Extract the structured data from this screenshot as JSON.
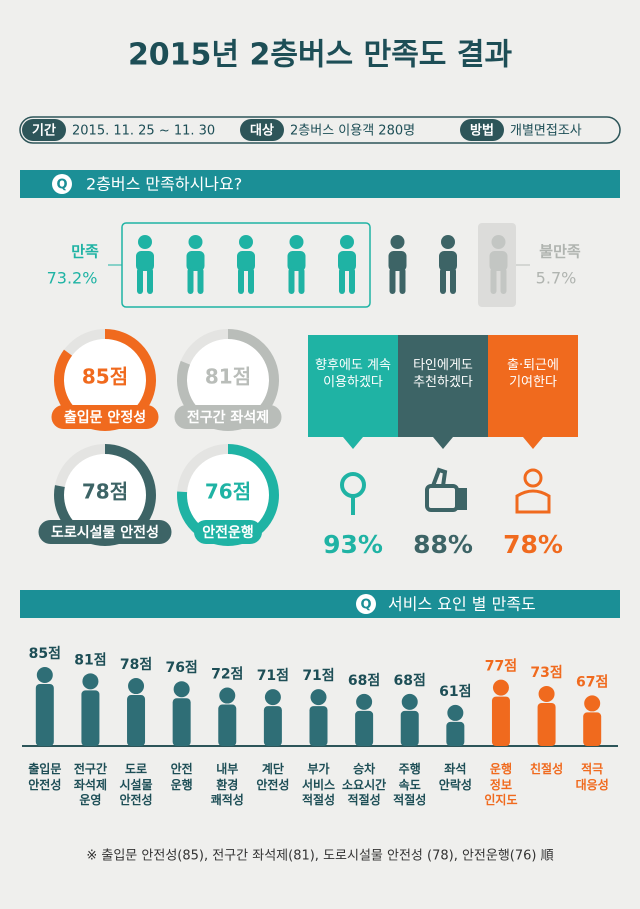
{
  "title": "2015년 2층버스 만족도 결과",
  "info": [
    {
      "label": "기간",
      "text": "2015. 11. 25 ~ 11. 30"
    },
    {
      "label": "대상",
      "text": "2층버스 이용객 280명"
    },
    {
      "label": "방법",
      "text": "개별면접조사"
    }
  ],
  "q1": {
    "mark": "Q",
    "title": "2층버스 만족하시나요?",
    "satisfied_label": "만족",
    "satisfied": 73.2,
    "satisfied_text": "73.2%",
    "dissatisfied_label": "불만족",
    "dissatisfied": 5.7,
    "dissatisfied_text": "5.7%"
  },
  "rings": [
    {
      "value": 85,
      "label": "85점",
      "name": "출입문 안정성",
      "color": "#f06a1e"
    },
    {
      "value": 81,
      "label": "81점",
      "name": "전구간 좌석제",
      "color": "#b9bdb9"
    },
    {
      "value": 78,
      "label": "78점",
      "name": "도로시설물 안전성",
      "color": "#3d6466"
    },
    {
      "value": 76,
      "label": "76점",
      "name": "안전운행",
      "color": "#1fb3a4"
    }
  ],
  "intent": [
    {
      "text": "향후에도 계속 이용하겠다",
      "value": 93,
      "label": "93%",
      "color": "#1fb3a4"
    },
    {
      "text": "타인에게도 추천하겠다",
      "value": 88,
      "label": "88%",
      "color": "#3d6466"
    },
    {
      "text": "출·퇴근에 기여한다",
      "value": 78,
      "label": "78%",
      "color": "#f06a1e"
    }
  ],
  "chart_data": {
    "type": "bar",
    "mark": "Q",
    "title": "서비스 요인 별 만족도",
    "categories": [
      "출입문 안전성",
      "전구간 좌석제 운영",
      "도로 시설물 안전성",
      "안전 운행",
      "내부 환경 쾌적성",
      "계단 안전성",
      "부가 서비스 적절성",
      "승차 소요시간 적절성",
      "주행 속도 적절성",
      "좌석 안락성",
      "운행 정보 인지도",
      "친절성",
      "적극 대응성"
    ],
    "values": [
      85,
      81,
      78,
      76,
      72,
      71,
      71,
      68,
      68,
      61,
      77,
      73,
      67
    ],
    "value_labels": [
      "85점",
      "81점",
      "78점",
      "76점",
      "72점",
      "71점",
      "71점",
      "68점",
      "68점",
      "61점",
      "77점",
      "73점",
      "67점"
    ],
    "colors": [
      "#2f6e76",
      "#2f6e76",
      "#2f6e76",
      "#2f6e76",
      "#2f6e76",
      "#2f6e76",
      "#2f6e76",
      "#2f6e76",
      "#2f6e76",
      "#2f6e76",
      "#f06a1e",
      "#f06a1e",
      "#f06a1e"
    ],
    "note": "※ 출입문 안전성(85), 전구간 좌석제(81), 도로시설물 안전성 (78), 안전운행(76) 順"
  }
}
